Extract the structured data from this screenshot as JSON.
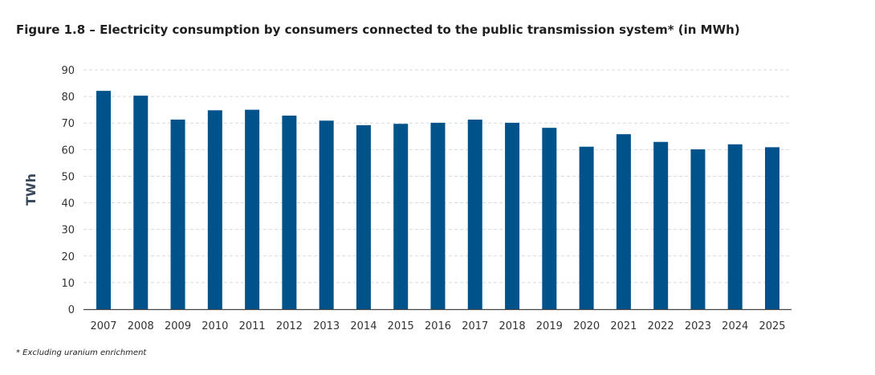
{
  "chart_data": {
    "type": "bar",
    "title": "Figure 1.8 – Electricity consumption by consumers connected to the public transmission system* (in MWh)",
    "xlabel": "",
    "ylabel": "TWh",
    "ylim": [
      0,
      90
    ],
    "yticks": [
      0,
      10,
      20,
      30,
      40,
      50,
      60,
      70,
      80,
      90
    ],
    "grid": true,
    "bar_color": "#00528a",
    "categories": [
      "2007",
      "2008",
      "2009",
      "2010",
      "2011",
      "2012",
      "2013",
      "2014",
      "2015",
      "2016",
      "2017",
      "2018",
      "2019",
      "2020",
      "2021",
      "2022",
      "2023",
      "2024",
      "2025"
    ],
    "values": [
      82.1,
      80.3,
      71.3,
      74.8,
      75.0,
      72.8,
      70.9,
      69.2,
      69.7,
      70.1,
      71.3,
      70.1,
      68.2,
      61.1,
      65.8,
      62.9,
      60.1,
      62.0,
      60.9
    ],
    "footnote": "* Excluding uranium enrichment"
  }
}
